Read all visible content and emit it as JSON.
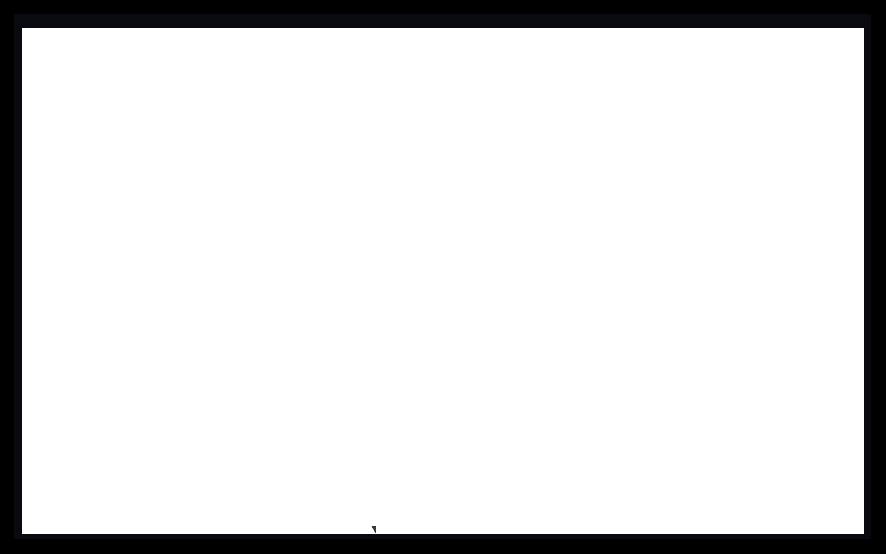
{
  "screen": {
    "background_color": "#000000",
    "bezel_color": "#080a10",
    "canvas_color": "#ffffff"
  },
  "cursor": {
    "icon": "mouse-pointer-icon",
    "color": "#3a3a3a"
  }
}
